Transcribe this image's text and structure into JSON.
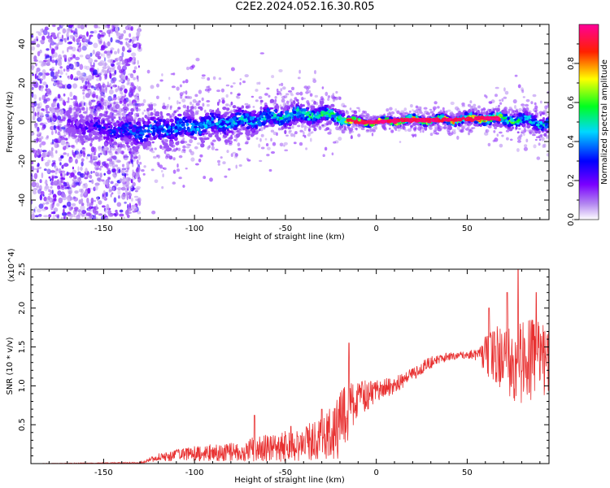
{
  "title": "C2E2.2024.052.16.30.R05",
  "chart_data": [
    {
      "type": "heatmap",
      "xlabel": "Height of straight line (km)",
      "ylabel": "Frequency (Hz)",
      "xlim": [
        -190,
        95
      ],
      "ylim": [
        -50,
        50
      ],
      "xticks": [
        -150,
        -100,
        -50,
        0,
        50
      ],
      "yticks": [
        -40,
        -20,
        0,
        20,
        40
      ],
      "colorbar": {
        "label": "Normalized spectral amplitude",
        "range": [
          0,
          1
        ],
        "ticks": [
          0.0,
          0.2,
          0.4,
          0.6,
          0.8
        ],
        "colormap": [
          "#ffffff",
          "#8a2be2",
          "#0000ff",
          "#00ffff",
          "#00ff00",
          "#ffff00",
          "#ff0000",
          "#ff00a0"
        ]
      },
      "ridge": {
        "x": [
          -190,
          -160,
          -140,
          -120,
          -100,
          -80,
          -60,
          -40,
          -20,
          -15,
          0,
          15,
          40,
          60,
          80,
          95
        ],
        "center_hz": [
          0,
          -2,
          -5,
          -4,
          -2,
          0,
          2,
          4,
          3,
          0,
          0,
          1,
          1,
          2,
          1,
          -1
        ],
        "halfwidth_hz": [
          4,
          6,
          8,
          8,
          7,
          6,
          6,
          5,
          4,
          2,
          1,
          2,
          2,
          3,
          4,
          4
        ],
        "peak_amplitude": [
          0.15,
          0.25,
          0.35,
          0.4,
          0.45,
          0.45,
          0.5,
          0.55,
          0.6,
          0.95,
          1.0,
          0.9,
          0.85,
          0.8,
          0.55,
          0.45
        ]
      }
    },
    {
      "type": "line",
      "xlabel": "Height of straight line (km)",
      "ylabel": "SNR (10 * v/v)",
      "y_multiplier": "(x10^4)",
      "xlim": [
        -190,
        95
      ],
      "ylim": [
        0,
        2.5
      ],
      "xticks": [
        -150,
        -100,
        -50,
        0,
        50
      ],
      "yticks": [
        0.5,
        1.0,
        1.5,
        2.0,
        2.5
      ],
      "series": [
        {
          "color": "#e83030",
          "x": [
            -190,
            -130,
            -120,
            -100,
            -80,
            -60,
            -40,
            -30,
            -20,
            -15,
            -10,
            0,
            10,
            20,
            30,
            40,
            50,
            55,
            60,
            70,
            80,
            90,
            95
          ],
          "mean": [
            0.0,
            0.01,
            0.08,
            0.13,
            0.15,
            0.2,
            0.25,
            0.33,
            0.5,
            0.7,
            0.8,
            0.95,
            1.0,
            1.15,
            1.3,
            1.38,
            1.4,
            1.4,
            1.4,
            1.38,
            1.3,
            1.35,
            1.3
          ],
          "noise": [
            0.0,
            0.01,
            0.05,
            0.1,
            0.12,
            0.18,
            0.22,
            0.3,
            0.45,
            0.4,
            0.25,
            0.15,
            0.12,
            0.1,
            0.08,
            0.05,
            0.05,
            0.08,
            0.25,
            0.45,
            0.6,
            0.5,
            0.45
          ],
          "peaks": [
            [
              -67,
              0.62
            ],
            [
              -47,
              0.48
            ],
            [
              -15,
              1.55
            ],
            [
              -30,
              0.7
            ],
            [
              78,
              2.5
            ],
            [
              72,
              2.2
            ],
            [
              88,
              2.2
            ],
            [
              62,
              2.0
            ]
          ]
        }
      ]
    }
  ]
}
